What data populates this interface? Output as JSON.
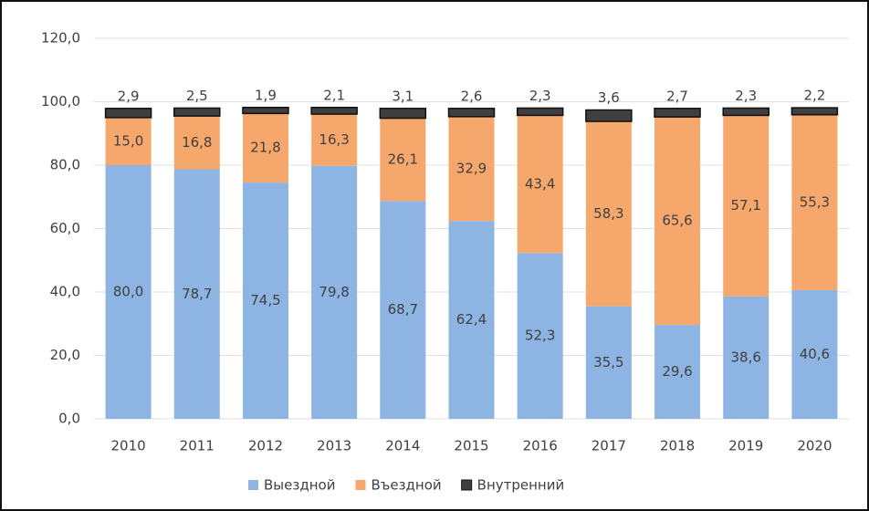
{
  "chart_data": {
    "type": "stacked_bar",
    "categories": [
      "2010",
      "2011",
      "2012",
      "2013",
      "2014",
      "2015",
      "2016",
      "2017",
      "2018",
      "2019",
      "2020"
    ],
    "series": [
      {
        "name": "Выездной",
        "color": "#8db4e2",
        "values": [
          80.0,
          78.7,
          74.5,
          79.8,
          68.7,
          62.4,
          52.3,
          35.5,
          29.6,
          38.6,
          40.6
        ],
        "value_labels": [
          "80,0",
          "78,7",
          "74,5",
          "79,8",
          "68,7",
          "62,4",
          "52,3",
          "35,5",
          "29,6",
          "38,6",
          "40,6"
        ]
      },
      {
        "name": "Въездной",
        "color": "#f5a76c",
        "values": [
          15.0,
          16.8,
          21.8,
          16.3,
          26.1,
          32.9,
          43.4,
          58.3,
          65.6,
          57.1,
          55.3
        ],
        "value_labels": [
          "15,0",
          "16,8",
          "21,8",
          "16,3",
          "26,1",
          "32,9",
          "43,4",
          "58,3",
          "65,6",
          "57,1",
          "55,3"
        ]
      },
      {
        "name": "Внутренний",
        "color": "#3f3f3f",
        "values": [
          2.9,
          2.5,
          1.9,
          2.1,
          3.1,
          2.6,
          2.3,
          3.6,
          2.7,
          2.3,
          2.2
        ],
        "value_labels": [
          "2,9",
          "2,5",
          "1,9",
          "2,1",
          "3,1",
          "2,6",
          "2,3",
          "3,6",
          "2,7",
          "2,3",
          "2,2"
        ]
      }
    ],
    "ylim": [
      0,
      120
    ],
    "yticks": [
      {
        "value": 0,
        "label": "0,0"
      },
      {
        "value": 20,
        "label": "20,0"
      },
      {
        "value": 40,
        "label": "40,0"
      },
      {
        "value": 60,
        "label": "60,0"
      },
      {
        "value": 80,
        "label": "80,0"
      },
      {
        "value": 100,
        "label": "100,0"
      },
      {
        "value": 120,
        "label": "120,0"
      }
    ],
    "grid": true,
    "legend": "bottom"
  }
}
